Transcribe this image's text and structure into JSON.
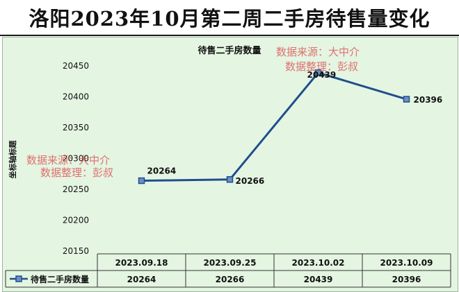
{
  "title": "洛阳2023年10月第二周二手房待售量变化",
  "watermark": {
    "line1": "数据来源：大中介",
    "line2": "数据整理：彭叔",
    "color": "#e0585c"
  },
  "colors": {
    "panel_bg": "#e4f5e2",
    "series_line": "#1f4e8c",
    "watermark": "#e0585c"
  },
  "chart_data": {
    "type": "line",
    "title": "待售二手房数量",
    "xlabel": "",
    "ylabel": "坐标轴标题",
    "categories": [
      "2023.09.18",
      "2023.09.25",
      "2023.10.02",
      "2023.10.09"
    ],
    "series": [
      {
        "name": "待售二手房数量",
        "values": [
          20264,
          20266,
          20439,
          20396
        ]
      }
    ],
    "ylim": [
      20150,
      20450
    ],
    "yticks": [
      20150,
      20200,
      20250,
      20300,
      20350,
      20400,
      20450
    ],
    "data_labels": [
      "20264",
      "20266",
      "20439",
      "20396"
    ],
    "grid": false,
    "legend_placement": "data table"
  }
}
